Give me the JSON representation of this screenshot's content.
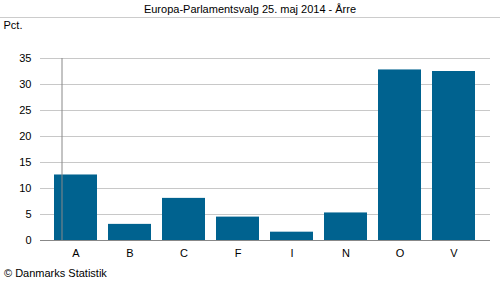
{
  "chart_data": {
    "type": "bar",
    "title": "Europa-Parlamentsvalg 25. maj 2014 - Årre",
    "y_label": "Pct.",
    "caption": "© Danmarks Statistik",
    "categories": [
      "A",
      "B",
      "C",
      "F",
      "I",
      "N",
      "O",
      "V"
    ],
    "values": [
      12.6,
      3.1,
      8.1,
      4.5,
      1.6,
      5.3,
      32.8,
      32.5
    ],
    "color": "#00628f",
    "ylim": [
      0,
      35
    ],
    "yticks": [
      0,
      5,
      10,
      15,
      20,
      25,
      30,
      35
    ],
    "grid": true
  }
}
